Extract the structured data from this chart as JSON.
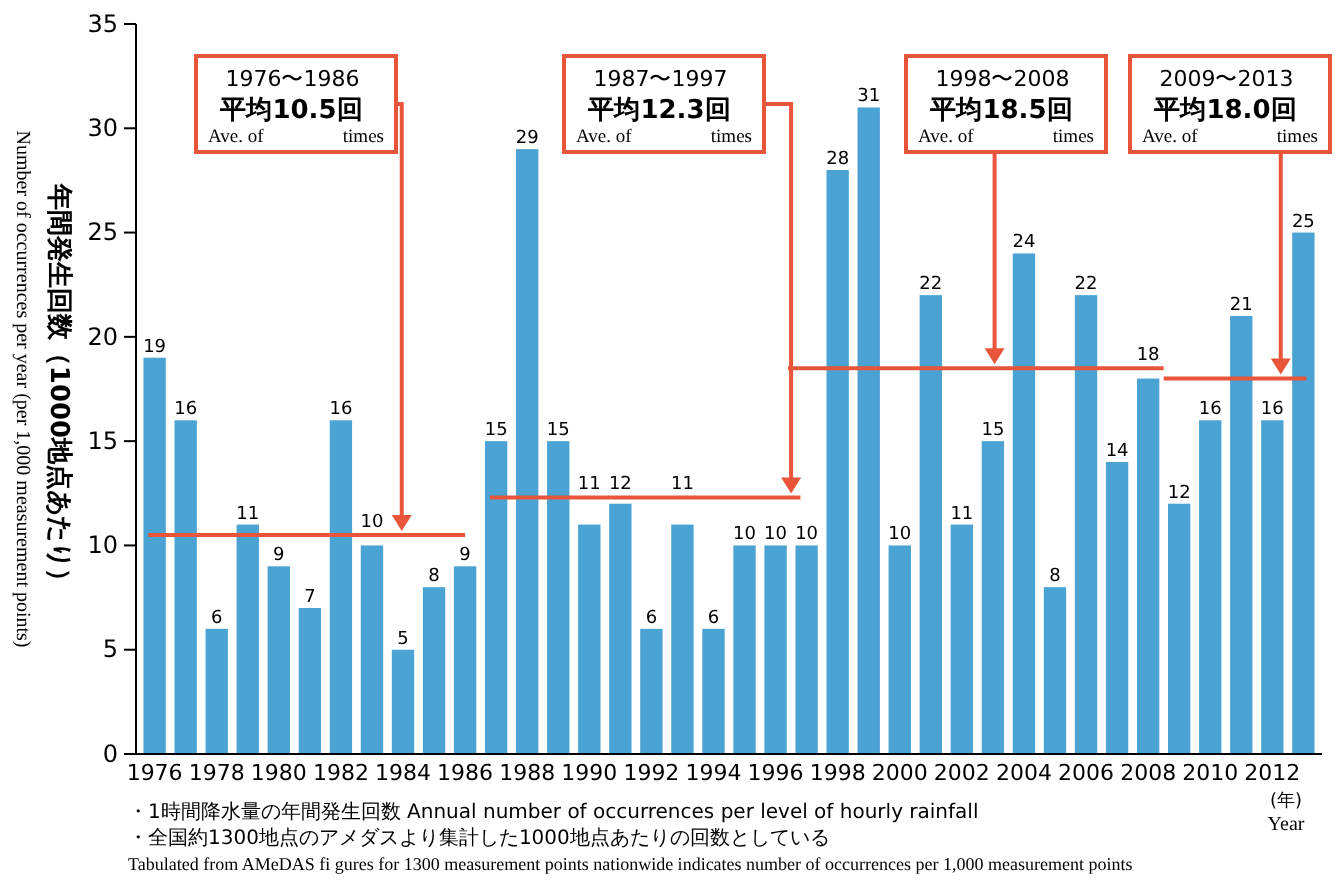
{
  "chart_data": {
    "type": "bar",
    "ylabel": "年間発生回数（1000地点あたり）\nNumber of occurrences per year (per 1,000 measurement points)",
    "xlabel": "(年)\nYear",
    "x": [
      1976,
      1977,
      1978,
      1979,
      1980,
      1981,
      1982,
      1983,
      1984,
      1985,
      1986,
      1987,
      1988,
      1989,
      1990,
      1991,
      1992,
      1993,
      1994,
      1995,
      1996,
      1997,
      1998,
      1999,
      2000,
      2001,
      2002,
      2003,
      2004,
      2005,
      2006,
      2007,
      2008,
      2009,
      2010,
      2011,
      2012,
      2013
    ],
    "xlim": [
      1975.4,
      2013.6
    ],
    "xticks": [
      1976,
      1978,
      1980,
      1982,
      1984,
      1986,
      1988,
      1990,
      1992,
      1994,
      1996,
      1998,
      2000,
      2002,
      2004,
      2006,
      2008,
      2010,
      2012
    ],
    "ylim": [
      0,
      35
    ],
    "yticks": [
      0,
      5,
      10,
      15,
      20,
      25,
      30,
      35
    ],
    "grid": false,
    "series": [
      {
        "color": "#4ba3d3",
        "values": [
          19,
          16,
          6,
          11,
          9,
          7,
          16,
          10,
          5,
          8,
          9,
          15,
          29,
          15,
          11,
          12,
          6,
          11,
          6,
          10,
          10,
          10,
          28,
          31,
          10,
          22,
          11,
          15,
          24,
          8,
          22,
          14,
          18,
          12,
          16,
          21,
          16,
          25
        ],
        "value_labels": [
          "19",
          "16",
          "6",
          "11",
          "9",
          "7",
          "16",
          "10",
          "5",
          "8",
          "9",
          "15",
          "29",
          "15",
          "11",
          "12",
          "6",
          "11",
          "6",
          "10",
          "10",
          "10",
          "28",
          "31",
          "10",
          "22",
          "11",
          "15",
          "24",
          "8",
          "22",
          "14",
          "18",
          "12",
          "16",
          "21",
          "16",
          "25"
        ]
      },
      {
        "type": "line",
        "color": "#e8553a",
        "x": [
          1975.8,
          1986.0
        ],
        "values": [
          10.5,
          10.5
        ]
      },
      {
        "type": "line",
        "color": "#e8553a",
        "x": [
          1986.8,
          1996.8
        ],
        "values": [
          12.3,
          12.3
        ]
      },
      {
        "type": "line",
        "color": "#e8553a",
        "x": [
          1996.4,
          2008.5
        ],
        "values": [
          18.5,
          18.5
        ]
      },
      {
        "type": "line",
        "color": "#e8553a",
        "x": [
          2008.5,
          2013.1
        ],
        "values": [
          18.0,
          18.0
        ]
      }
    ],
    "annotations": [
      "1976〜1986\n平均10.5回\nAve. of times",
      "1987〜1997\n平均12.3回\nAve. of times",
      "1998〜2008\n平均18.5回\nAve. of times",
      "2009〜2013\n平均18.0回\nAve. of times",
      "・1時間降水量の年間発生回数 Annual number of occurrences per level of hourly rainfall",
      "・全国約1300地点のアメダスより集計した1000地点あたりの回数としている",
      "Tabulated from AMeDAS fi gures for 1300 measurement points nationwide indicates number of occurrences per 1,000 measurement points"
    ]
  }
}
